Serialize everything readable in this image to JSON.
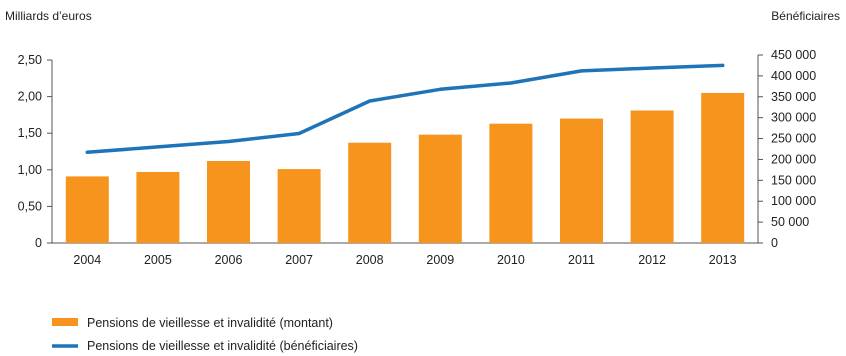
{
  "chart_data": {
    "type": "bar",
    "left_axis_title": "Milliards d’euros",
    "right_axis_title": "Bénéficiaires",
    "categories": [
      "2004",
      "2005",
      "2006",
      "2007",
      "2008",
      "2009",
      "2010",
      "2011",
      "2012",
      "2013"
    ],
    "left_ticks": [
      "0",
      "0,50",
      "1,00",
      "1,50",
      "2,00",
      "2,50"
    ],
    "right_ticks": [
      "0",
      "50 000",
      "100 000",
      "150 000",
      "200 000",
      "250 000",
      "300 000",
      "350 000",
      "400 000",
      "450 000"
    ],
    "ylim_left": [
      0,
      2.5
    ],
    "ylim_right": [
      0,
      450000
    ],
    "series": [
      {
        "name": "Pensions de vieillesse et invalidité (montant)",
        "type": "bar",
        "axis": "left",
        "color": "#f7941d",
        "values": [
          0.91,
          0.97,
          1.12,
          1.01,
          1.37,
          1.48,
          1.63,
          1.7,
          1.81,
          2.05
        ]
      },
      {
        "name": "Pensions de vieillesse et invalidité (bénéficiaires)",
        "type": "line",
        "axis": "right",
        "color": "#1f74b8",
        "values": [
          217000,
          230000,
          243000,
          262000,
          340000,
          368000,
          383000,
          412000,
          419000,
          425000
        ]
      }
    ],
    "grid": false,
    "legend_position": "bottom-left"
  }
}
